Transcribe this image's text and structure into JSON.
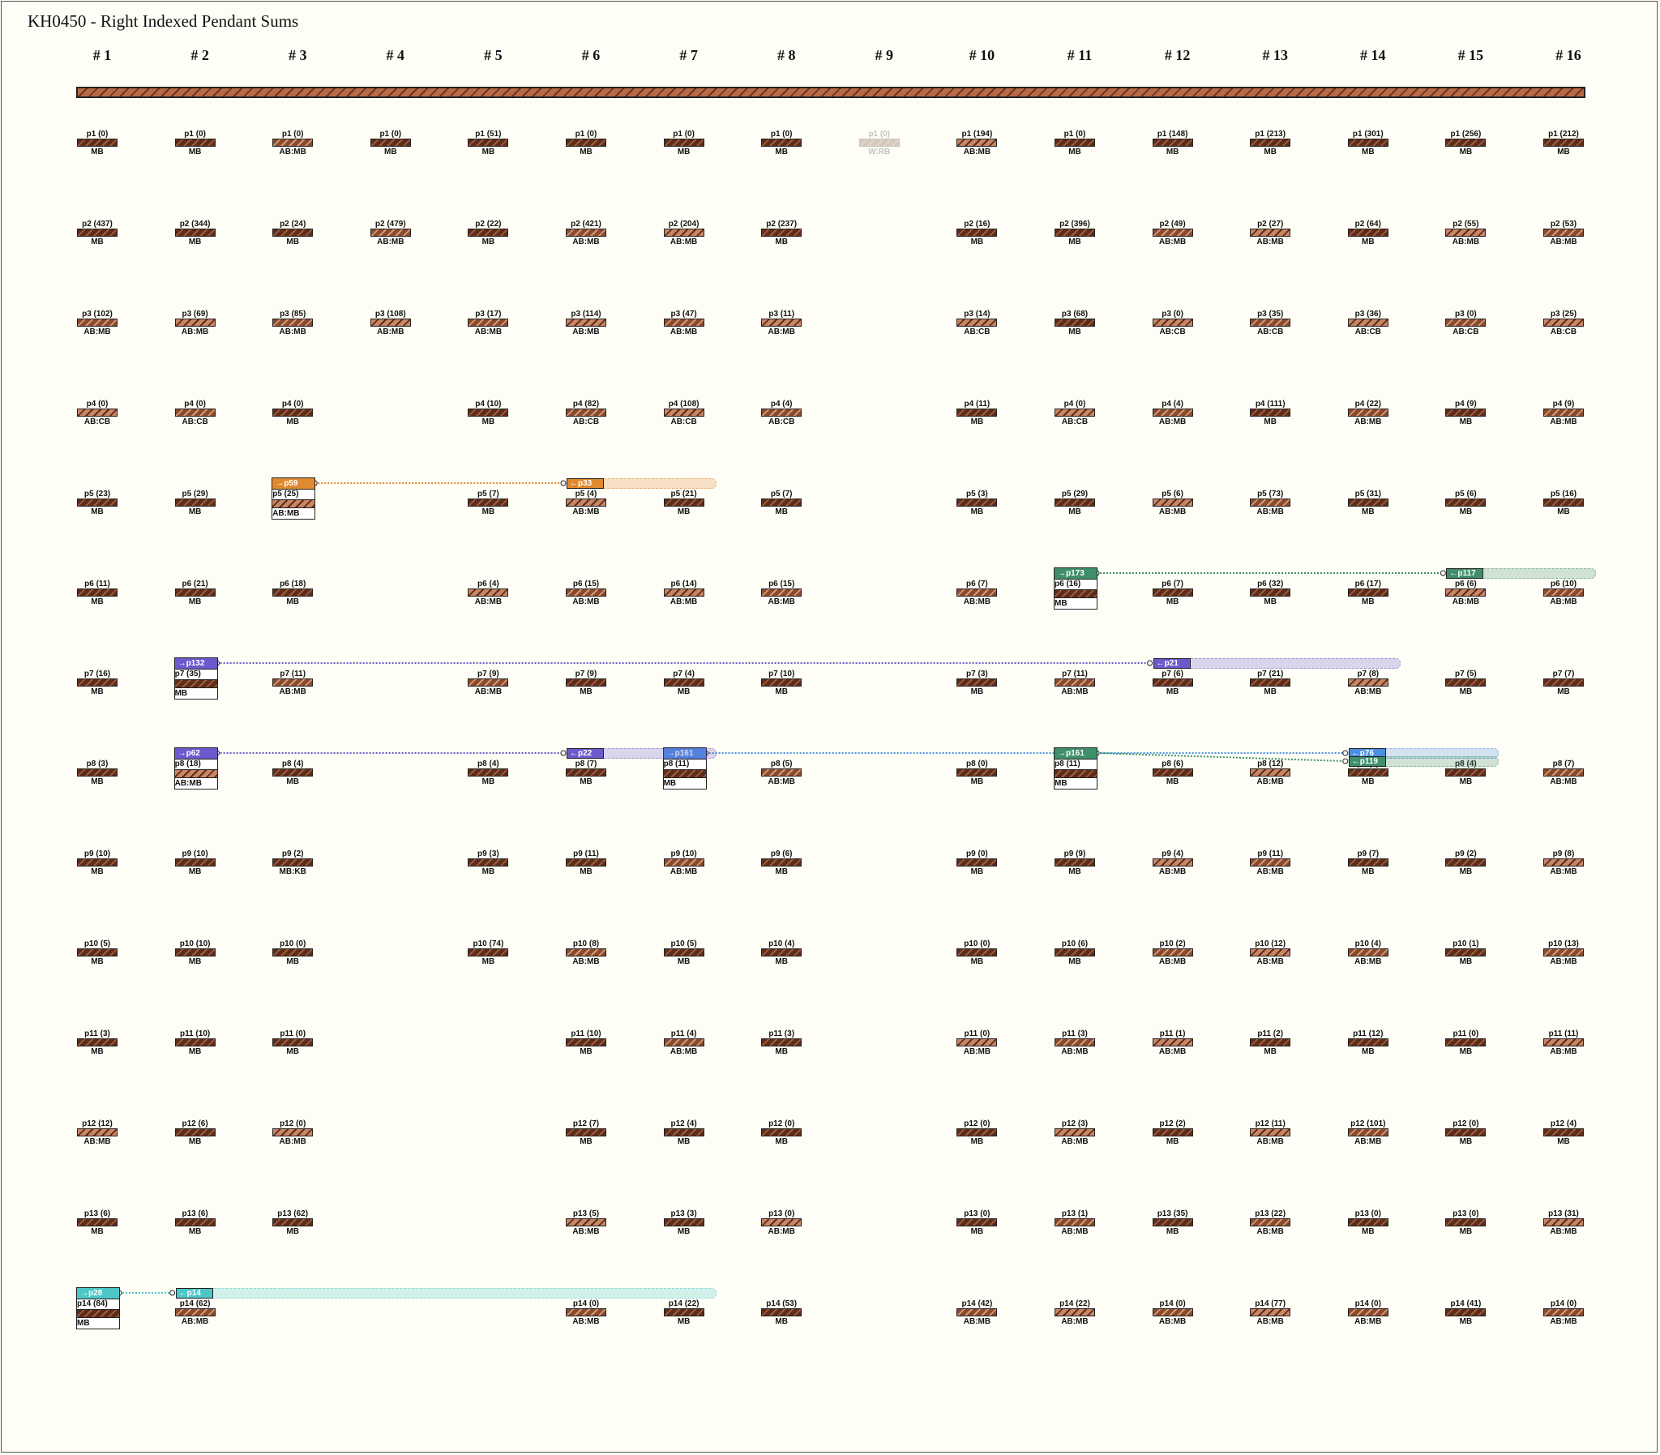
{
  "title": "KH0450 - Right Indexed Pendant Sums",
  "columns": [
    "# 1",
    "# 2",
    "# 3",
    "# 4",
    "# 5",
    "# 6",
    "# 7",
    "# 8",
    "# 9",
    "# 10",
    "# 11",
    "# 12",
    "# 13",
    "# 14",
    "# 15",
    "# 16"
  ],
  "rows": [
    [
      "p1 (0)|MB",
      "p1 (0)|MB",
      "p1 (0)|AB:MB",
      "p1 (0)|MB",
      "p1 (51)|MB",
      "p1 (0)|MB",
      "p1 (0)|MB",
      "p1 (0)|MB",
      "p1 (0)|W:RB",
      "p1 (194)|AB:MB",
      "p1 (0)|MB",
      "p1 (148)|MB",
      "p1 (213)|MB",
      "p1 (301)|MB",
      "p1 (256)|MB",
      "p1 (212)|MB"
    ],
    [
      "p2 (437)|MB",
      "p2 (344)|MB",
      "p2 (24)|MB",
      "p2 (479)|AB:MB",
      "p2 (22)|MB",
      "p2 (421)|AB:MB",
      "p2 (204)|AB:MB",
      "p2 (237)|MB",
      "",
      "p2 (16)|MB",
      "p2 (396)|MB",
      "p2 (49)|AB:MB",
      "p2 (27)|AB:MB",
      "p2 (64)|MB",
      "p2 (55)|AB:MB",
      "p2 (53)|AB:MB"
    ],
    [
      "p3 (102)|AB:MB",
      "p3 (69)|AB:MB",
      "p3 (85)|AB:MB",
      "p3 (108)|AB:MB",
      "p3 (17)|AB:MB",
      "p3 (114)|AB:MB",
      "p3 (47)|AB:MB",
      "p3 (11)|AB:MB",
      "",
      "p3 (14)|AB:CB",
      "p3 (68)|MB",
      "p3 (0)|AB:CB",
      "p3 (35)|AB:CB",
      "p3 (36)|AB:CB",
      "p3 (0)|AB:CB",
      "p3 (25)|AB:CB"
    ],
    [
      "p4 (0)|AB:CB",
      "p4 (0)|AB:CB",
      "p4 (0)|MB",
      "",
      "p4 (10)|MB",
      "p4 (82)|AB:CB",
      "p4 (108)|AB:CB",
      "p4 (4)|AB:CB",
      "",
      "p4 (11)|MB",
      "p4 (0)|AB:CB",
      "p4 (4)|AB:MB",
      "p4 (111)|MB",
      "p4 (22)|AB:MB",
      "p4 (9)|MB",
      "p4 (9)|AB:MB"
    ],
    [
      "p5 (23)|MB",
      "p5 (29)|MB",
      "",
      "",
      "p5 (7)|MB",
      "p5 (4)|AB:MB",
      "p5 (21)|MB",
      "p5 (7)|MB",
      "",
      "p5 (3)|MB",
      "p5 (29)|MB",
      "p5 (6)|AB:MB",
      "p5 (73)|AB:MB",
      "p5 (31)|MB",
      "p5 (6)|MB",
      "p5 (16)|MB"
    ],
    [
      "p6 (11)|MB",
      "p6 (21)|MB",
      "p6 (18)|MB",
      "",
      "p6 (4)|AB:MB",
      "p6 (15)|AB:MB",
      "p6 (14)|AB:MB",
      "p6 (15)|AB:MB",
      "",
      "p6 (7)|AB:MB",
      "",
      "p6 (7)|MB",
      "p6 (32)|MB",
      "p6 (17)|MB",
      "p6 (6)|AB:MB",
      "p6 (10)|AB:MB"
    ],
    [
      "p7 (16)|MB",
      "",
      "p7 (11)|AB:MB",
      "",
      "p7 (9)|AB:MB",
      "p7 (9)|MB",
      "p7 (4)|MB",
      "p7 (10)|MB",
      "",
      "p7 (3)|MB",
      "p7 (11)|AB:MB",
      "p7 (6)|MB",
      "p7 (21)|MB",
      "p7 (8)|AB:MB",
      "p7 (5)|MB",
      "p7 (7)|MB"
    ],
    [
      "p8 (3)|MB",
      "",
      "p8 (4)|MB",
      "",
      "p8 (4)|MB",
      "p8 (7)|MB",
      "",
      "p8 (5)|AB:MB",
      "",
      "p8 (0)|MB",
      "",
      "p8 (6)|MB",
      "p8 (12)|AB:MB",
      "p8 (7)|MB",
      "p8 (4)|MB",
      "p8 (7)|AB:MB"
    ],
    [
      "p9 (10)|MB",
      "p9 (10)|MB",
      "p9 (2)|MB:KB",
      "",
      "p9 (3)|MB",
      "p9 (11)|MB",
      "p9 (10)|AB:MB",
      "p9 (6)|MB",
      "",
      "p9 (0)|MB",
      "p9 (9)|MB",
      "p9 (4)|AB:MB",
      "p9 (11)|AB:MB",
      "p9 (7)|MB",
      "p9 (2)|MB",
      "p9 (8)|AB:MB"
    ],
    [
      "p10 (5)|MB",
      "p10 (10)|MB",
      "p10 (0)|MB",
      "",
      "p10 (74)|MB",
      "p10 (8)|AB:MB",
      "p10 (5)|MB",
      "p10 (4)|MB",
      "",
      "p10 (0)|MB",
      "p10 (6)|MB",
      "p10 (2)|AB:MB",
      "p10 (12)|AB:MB",
      "p10 (4)|AB:MB",
      "p10 (1)|MB",
      "p10 (13)|AB:MB"
    ],
    [
      "p11 (3)|MB",
      "p11 (10)|MB",
      "p11 (0)|MB",
      "",
      "",
      "p11 (10)|MB",
      "p11 (4)|AB:MB",
      "p11 (3)|MB",
      "",
      "p11 (0)|AB:MB",
      "p11 (3)|AB:MB",
      "p11 (1)|AB:MB",
      "p11 (2)|MB",
      "p11 (12)|MB",
      "p11 (0)|MB",
      "p11 (11)|AB:MB"
    ],
    [
      "p12 (12)|AB:MB",
      "p12 (6)|MB",
      "p12 (0)|AB:MB",
      "",
      "",
      "p12 (7)|MB",
      "p12 (4)|MB",
      "p12 (0)|MB",
      "",
      "p12 (0)|MB",
      "p12 (3)|AB:MB",
      "p12 (2)|MB",
      "p12 (11)|AB:MB",
      "p12 (101)|AB:MB",
      "p12 (0)|MB",
      "p12 (4)|MB"
    ],
    [
      "p13 (6)|MB",
      "p13 (6)|MB",
      "p13 (62)|MB",
      "",
      "",
      "p13 (5)|AB:MB",
      "p13 (3)|MB",
      "p13 (0)|AB:MB",
      "",
      "p13 (0)|MB",
      "p13 (1)|AB:MB",
      "p13 (35)|MB",
      "p13 (22)|AB:MB",
      "p13 (0)|MB",
      "p13 (0)|MB",
      "p13 (31)|AB:MB"
    ],
    [
      "",
      "p14 (62)|AB:MB",
      "",
      "",
      "",
      "p14 (0)|AB:MB",
      "p14 (22)|MB",
      "p14 (53)|MB",
      "",
      "p14 (42)|AB:MB",
      "p14 (22)|AB:MB",
      "p14 (0)|AB:MB",
      "p14 (77)|AB:MB",
      "p14 (0)|AB:MB",
      "p14 (41)|MB",
      "p14 (0)|AB:MB"
    ]
  ],
  "sum_pendants": [
    {
      "col": 3,
      "row": 5,
      "label": "p5 (25)",
      "material": "AB:MB",
      "tag": "→p59",
      "color": "#e0892e"
    },
    {
      "col": 11,
      "row": 6,
      "label": "p6 (16)",
      "material": "MB",
      "tag": "→p173",
      "color": "#3f8f6a"
    },
    {
      "col": 2,
      "row": 7,
      "label": "p7 (35)",
      "material": "MB",
      "tag": "→p132",
      "color": "#6a5acd"
    },
    {
      "col": 2,
      "row": 8,
      "label": "p8 (18)",
      "material": "AB:MB",
      "tag": "→p62",
      "color": "#6a5acd"
    },
    {
      "col": 7,
      "row": 8,
      "label": "p8 (11)",
      "material": "MB",
      "tag": "→p161",
      "color": "#4a8fe0"
    },
    {
      "col": 11,
      "row": 8,
      "label": "p8 (11)",
      "material": "MB",
      "tag": "→p161",
      "color": "#3f8f6a"
    },
    {
      "col": 1,
      "row": 14,
      "label": "p14 (84)",
      "material": "MB",
      "tag": "→p28",
      "color": "#4cc6c6"
    }
  ],
  "links": [
    {
      "from": [
        3,
        5
      ],
      "to_col": 6,
      "tag": "←p33",
      "color": "#e0892e",
      "band_end": 7.35
    },
    {
      "from": [
        11,
        6
      ],
      "to_col": 15,
      "tag": "←p117",
      "color": "#3f8f6a",
      "band_end": 16.35
    },
    {
      "from": [
        2,
        7
      ],
      "to_col": 12,
      "tag": "←p21",
      "color": "#6a5acd",
      "band_end": 14.35
    },
    {
      "from": [
        2,
        8
      ],
      "to_col": 6,
      "tag": "←p22",
      "color": "#6a5acd",
      "band_end": 7.35
    },
    {
      "from": [
        7,
        8
      ],
      "to_col": 14,
      "tag": "←p76",
      "color": "#4a8fe0",
      "band_end": 15.35
    },
    {
      "from": [
        11,
        8
      ],
      "to_col": 14,
      "tag": "←p119",
      "color": "#3f8f6a",
      "band_end": 15.35,
      "offset": 10
    },
    {
      "from": [
        1,
        14
      ],
      "to_col": 2,
      "tag": "←p14",
      "color": "#4cc6c6",
      "band_end": 7.35
    }
  ]
}
